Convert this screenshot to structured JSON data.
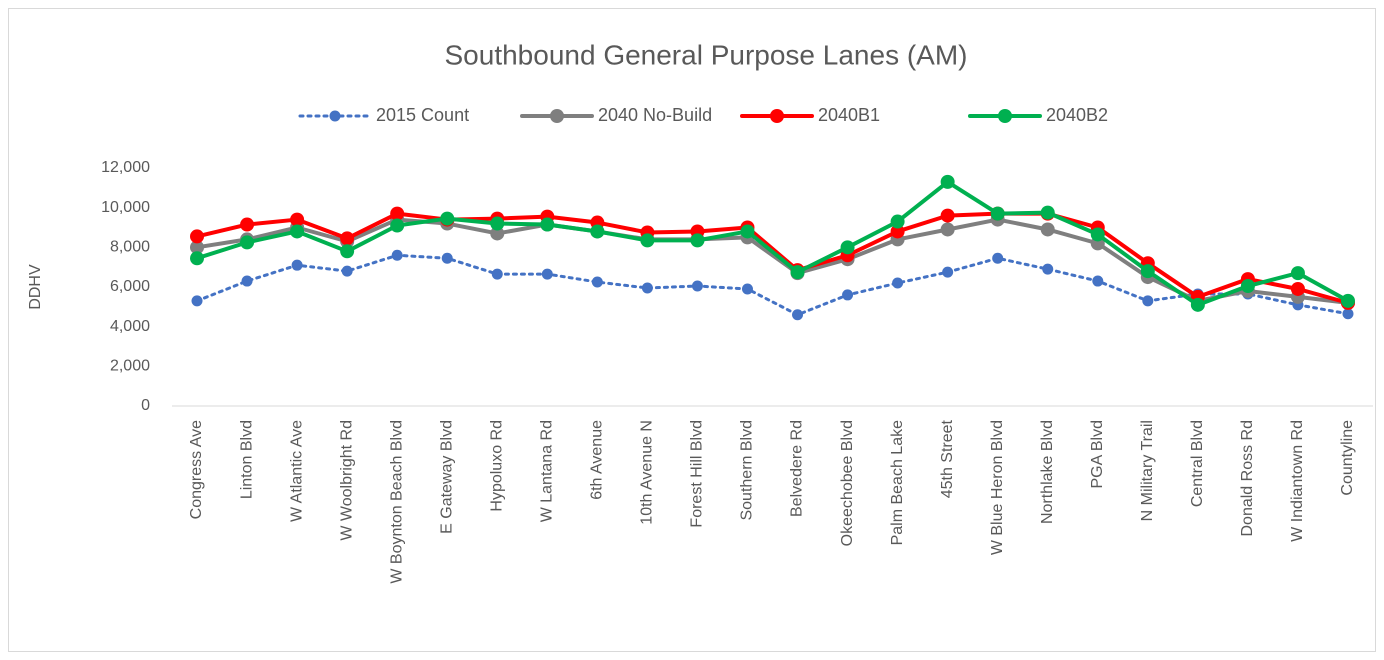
{
  "chart_data": {
    "type": "line",
    "title": "Southbound General Purpose Lanes (AM)",
    "y_label": "DDHV",
    "categories": [
      "Congress Ave",
      "Linton Blvd",
      "W Atlantic Ave",
      "W Woolbright Rd",
      "W Boynton Beach Blvd",
      "E Gateway Blvd",
      "Hypoluxo Rd",
      "W Lantana Rd",
      "6th Avenue",
      "10th Avenue N",
      "Forest Hill Blvd",
      "Southern Blvd",
      "Belvedere Rd",
      "Okeechobee Blvd",
      "Palm Beach Lake",
      "45th Street",
      "W Blue Heron Blvd",
      "Northlake Blvd",
      "PGA Blvd",
      "N Military Trail",
      "Central Blvd",
      "Donald Ross Rd",
      "W Indiantown Rd",
      "Countyline"
    ],
    "series": [
      {
        "name": "2015 Count",
        "color": "#4472c4",
        "dashed": true,
        "values": [
          5300,
          6300,
          7100,
          6800,
          7600,
          7450,
          6650,
          6650,
          6250,
          5950,
          6050,
          5900,
          4600,
          5600,
          6200,
          6750,
          7450,
          6900,
          6300,
          5300,
          5650,
          5650,
          5100,
          4650
        ]
      },
      {
        "name": "2040 No-Build",
        "color": "#7f7f7f",
        "values": [
          8000,
          8400,
          9000,
          8300,
          9400,
          9200,
          8700,
          9150,
          8800,
          8400,
          8400,
          8500,
          6700,
          7400,
          8400,
          8900,
          9400,
          8900,
          8200,
          6500,
          5300,
          5800,
          5500,
          5200
        ]
      },
      {
        "name": "2040B1",
        "color": "#ff0000",
        "values": [
          8550,
          9150,
          9400,
          8450,
          9700,
          9400,
          9450,
          9550,
          9250,
          8750,
          8800,
          9000,
          6850,
          7600,
          8800,
          9600,
          9700,
          9700,
          9000,
          7200,
          5500,
          6400,
          5900,
          5200
        ]
      },
      {
        "name": "2040B2",
        "color": "#00b050",
        "values": [
          7450,
          8250,
          8800,
          7800,
          9100,
          9450,
          9200,
          9150,
          8800,
          8350,
          8350,
          8800,
          6750,
          8000,
          9300,
          11300,
          9700,
          9750,
          8650,
          6800,
          5100,
          6050,
          6700,
          5300
        ]
      }
    ],
    "ylim": [
      0,
      12000
    ],
    "yticks": [
      0,
      {
        "value": 2000,
        "label": "2,000"
      },
      {
        "value": 4000,
        "label": "4,000"
      },
      {
        "value": 6000,
        "label": "6,000"
      },
      {
        "value": 8000,
        "label": "8,000"
      },
      {
        "value": 10000,
        "label": "10,000"
      },
      {
        "value": 12000,
        "label": "12,000"
      }
    ],
    "grid": false,
    "legend": "top"
  }
}
